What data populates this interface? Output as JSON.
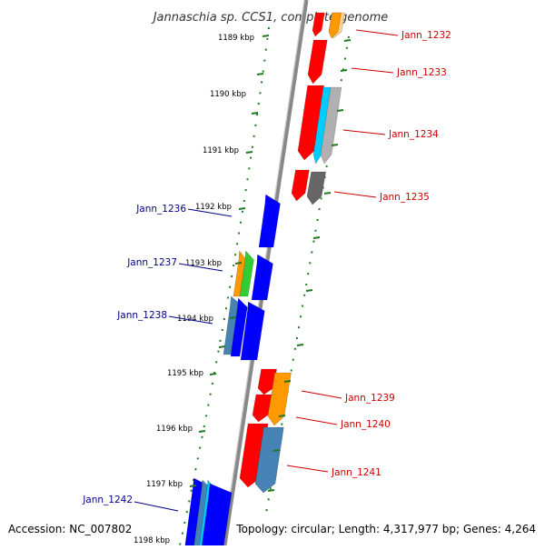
{
  "title": "Jannaschia sp. CCS1, complete genome",
  "footer": {
    "accession": "Accession: NC_007802",
    "summary": "Topology: circular; Length: 4,317,977 bp; Genes: 4,264"
  },
  "colors": {
    "backbone": "#888888",
    "tick": "#1f7a1f",
    "label_fwd": "#00008b",
    "label_rev": "#cc0000",
    "red": "#ff0000",
    "blue": "#0000ff",
    "orange": "#ff9900",
    "green": "#33cc33",
    "cyan": "#00ccff",
    "steel": "#4682b4",
    "gray": "#666666",
    "lightgray": "#b0b0b0",
    "peach": "#ffd090"
  },
  "kbp_labels": [
    "1189 kbp",
    "1190 kbp",
    "1191 kbp",
    "1192 kbp",
    "1193 kbp",
    "1194 kbp",
    "1195 kbp",
    "1196 kbp",
    "1197 kbp",
    "1198 kbp"
  ],
  "gene_labels": [
    "Jann_1232",
    "Jann_1233",
    "Jann_1234",
    "Jann_1235",
    "Jann_1236",
    "Jann_1237",
    "Jann_1238",
    "Jann_1239",
    "Jann_1240",
    "Jann_1241",
    "Jann_1242"
  ]
}
